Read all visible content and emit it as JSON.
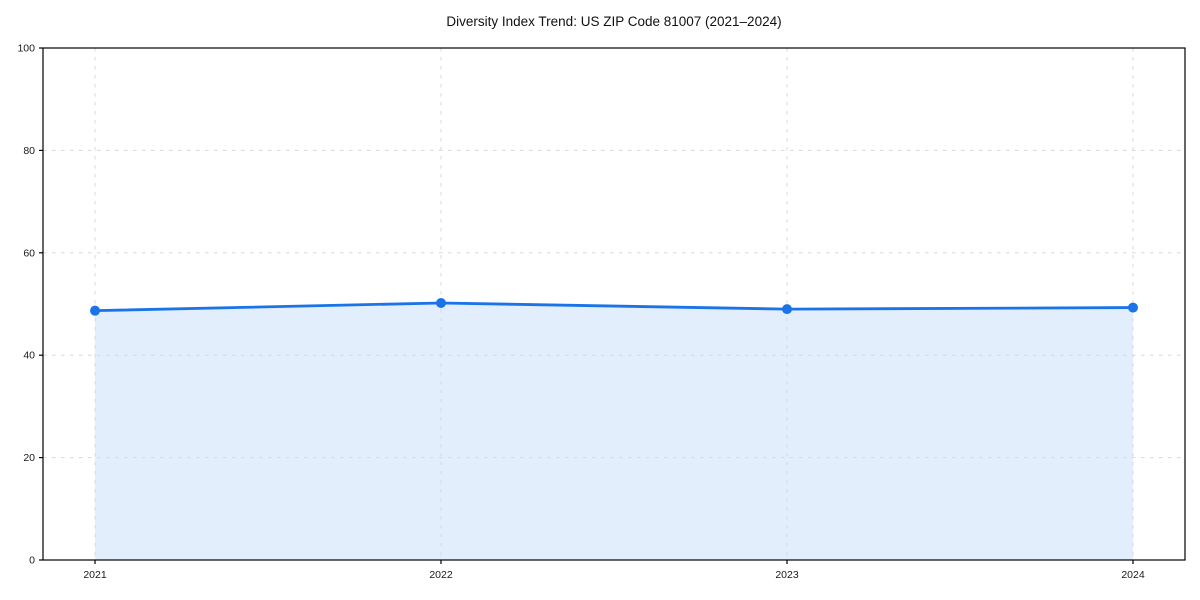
{
  "page": {
    "background": "#ffffff"
  },
  "chart_data": {
    "type": "line",
    "title": "Diversity Index Trend: US ZIP Code 81007 (2021–2024)",
    "x": [
      "2021",
      "2022",
      "2023",
      "2024"
    ],
    "series": [
      {
        "name": "Diversity Index",
        "values": [
          48.7,
          50.2,
          49.0,
          49.3
        ]
      }
    ],
    "xlabel": "",
    "ylabel": "",
    "ylim": [
      0,
      100
    ],
    "yticks": [
      0,
      20,
      40,
      60,
      80,
      100
    ],
    "grid": "dashed-both-axes",
    "legend": "none",
    "area_fill": true,
    "marker": "circle",
    "colors": {
      "line": "#1a73e8",
      "marker": "#1a73e8",
      "area": "rgba(26,115,232,0.12)",
      "grid": "#d8d8d8",
      "axis": "#000000",
      "tick_label": "#1a1a1a",
      "title": "#111111"
    }
  }
}
